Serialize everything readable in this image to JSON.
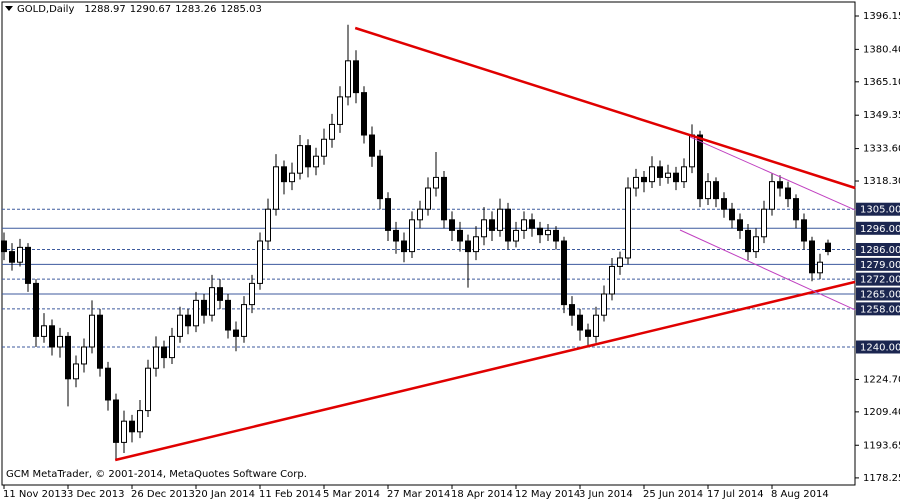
{
  "chart_data": {
    "type": "candlestick",
    "title": "GOLD,Daily",
    "footer": "GCM MetaTrader, © 2001-2014, MetaQuotes Software Corp.",
    "bull_color": "#ffffff",
    "bear_color": "#000000",
    "outline_color": "#000000",
    "categories": [
      "11 Nov 2013",
      null,
      null,
      null,
      null,
      null,
      null,
      null,
      "3 Dec 2013",
      null,
      null,
      null,
      null,
      null,
      null,
      null,
      "26 Dec 2013",
      null,
      null,
      null,
      null,
      null,
      null,
      null,
      "20 Jan 2014",
      null,
      null,
      null,
      null,
      null,
      null,
      null,
      "11 Feb 2014",
      null,
      null,
      null,
      null,
      null,
      null,
      null,
      "5 Mar 2014",
      null,
      null,
      null,
      null,
      null,
      null,
      null,
      "27 Mar 2014",
      null,
      null,
      null,
      null,
      null,
      null,
      null,
      "18 Apr 2014",
      null,
      null,
      null,
      null,
      null,
      null,
      null,
      "12 May 2014",
      null,
      null,
      null,
      null,
      null,
      null,
      null,
      "3 Jun 2014",
      null,
      null,
      null,
      null,
      null,
      null,
      null,
      "25 Jun 2014",
      null,
      null,
      null,
      null,
      null,
      null,
      null,
      "17 Jul 2014",
      null,
      null,
      null,
      null,
      null,
      null,
      null,
      "8 Aug 2014",
      null,
      null,
      null,
      null,
      null,
      null,
      null
    ],
    "candles": [
      [
        1290,
        1294,
        1281,
        1285
      ],
      [
        1285,
        1289,
        1276,
        1280
      ],
      [
        1280,
        1291,
        1278,
        1287
      ],
      [
        1287,
        1289,
        1266,
        1270
      ],
      [
        1270,
        1272,
        1240,
        1245
      ],
      [
        1245,
        1256,
        1242,
        1250
      ],
      [
        1250,
        1253,
        1236,
        1240
      ],
      [
        1240,
        1249,
        1235,
        1245
      ],
      [
        1245,
        1247,
        1212,
        1225
      ],
      [
        1225,
        1236,
        1221,
        1232
      ],
      [
        1232,
        1244,
        1228,
        1240
      ],
      [
        1240,
        1262,
        1237,
        1255
      ],
      [
        1255,
        1258,
        1226,
        1230
      ],
      [
        1230,
        1233,
        1210,
        1215
      ],
      [
        1215,
        1218,
        1187,
        1195
      ],
      [
        1195,
        1210,
        1190,
        1205
      ],
      [
        1205,
        1208,
        1195,
        1200
      ],
      [
        1200,
        1215,
        1197,
        1210
      ],
      [
        1210,
        1234,
        1207,
        1230
      ],
      [
        1230,
        1245,
        1226,
        1240
      ],
      [
        1240,
        1243,
        1230,
        1235
      ],
      [
        1235,
        1249,
        1232,
        1245
      ],
      [
        1245,
        1259,
        1242,
        1255
      ],
      [
        1255,
        1258,
        1246,
        1250
      ],
      [
        1250,
        1266,
        1247,
        1262
      ],
      [
        1262,
        1265,
        1251,
        1255
      ],
      [
        1255,
        1274,
        1252,
        1268
      ],
      [
        1268,
        1272,
        1258,
        1262
      ],
      [
        1262,
        1265,
        1244,
        1248
      ],
      [
        1248,
        1252,
        1238,
        1245
      ],
      [
        1245,
        1264,
        1242,
        1260
      ],
      [
        1260,
        1274,
        1256,
        1270
      ],
      [
        1270,
        1294,
        1267,
        1290
      ],
      [
        1290,
        1310,
        1286,
        1305
      ],
      [
        1305,
        1331,
        1302,
        1325
      ],
      [
        1325,
        1328,
        1312,
        1318
      ],
      [
        1318,
        1327,
        1314,
        1322
      ],
      [
        1322,
        1340,
        1319,
        1335
      ],
      [
        1335,
        1338,
        1320,
        1325
      ],
      [
        1325,
        1334,
        1321,
        1330
      ],
      [
        1330,
        1343,
        1326,
        1338
      ],
      [
        1338,
        1350,
        1334,
        1345
      ],
      [
        1345,
        1363,
        1341,
        1358
      ],
      [
        1358,
        1392,
        1354,
        1375
      ],
      [
        1375,
        1380,
        1355,
        1360
      ],
      [
        1360,
        1363,
        1336,
        1340
      ],
      [
        1340,
        1344,
        1325,
        1330
      ],
      [
        1330,
        1333,
        1305,
        1310
      ],
      [
        1310,
        1313,
        1290,
        1295
      ],
      [
        1295,
        1299,
        1284,
        1290
      ],
      [
        1290,
        1294,
        1280,
        1285
      ],
      [
        1285,
        1304,
        1282,
        1300
      ],
      [
        1300,
        1309,
        1296,
        1305
      ],
      [
        1305,
        1320,
        1302,
        1315
      ],
      [
        1315,
        1332,
        1311,
        1320
      ],
      [
        1320,
        1323,
        1296,
        1300
      ],
      [
        1300,
        1304,
        1290,
        1295
      ],
      [
        1295,
        1299,
        1285,
        1290
      ],
      [
        1290,
        1293,
        1268,
        1285
      ],
      [
        1285,
        1297,
        1281,
        1292
      ],
      [
        1292,
        1306,
        1288,
        1300
      ],
      [
        1300,
        1304,
        1290,
        1295
      ],
      [
        1295,
        1310,
        1292,
        1305
      ],
      [
        1305,
        1308,
        1286,
        1290
      ],
      [
        1290,
        1299,
        1287,
        1295
      ],
      [
        1295,
        1304,
        1291,
        1300
      ],
      [
        1300,
        1303,
        1292,
        1296
      ],
      [
        1296,
        1299,
        1289,
        1293
      ],
      [
        1293,
        1298,
        1290,
        1295
      ],
      [
        1295,
        1297,
        1286,
        1290
      ],
      [
        1290,
        1292,
        1256,
        1260
      ],
      [
        1260,
        1264,
        1250,
        1255
      ],
      [
        1255,
        1258,
        1243,
        1248
      ],
      [
        1248,
        1251,
        1240,
        1245
      ],
      [
        1245,
        1259,
        1242,
        1255
      ],
      [
        1255,
        1269,
        1252,
        1265
      ],
      [
        1265,
        1282,
        1262,
        1278
      ],
      [
        1278,
        1285,
        1274,
        1282
      ],
      [
        1282,
        1320,
        1279,
        1315
      ],
      [
        1315,
        1324,
        1311,
        1320
      ],
      [
        1320,
        1323,
        1313,
        1318
      ],
      [
        1318,
        1330,
        1315,
        1325
      ],
      [
        1325,
        1328,
        1316,
        1320
      ],
      [
        1320,
        1326,
        1317,
        1322
      ],
      [
        1322,
        1325,
        1314,
        1318
      ],
      [
        1318,
        1329,
        1315,
        1325
      ],
      [
        1325,
        1345,
        1322,
        1340
      ],
      [
        1340,
        1342,
        1306,
        1310
      ],
      [
        1310,
        1322,
        1307,
        1318
      ],
      [
        1318,
        1320,
        1306,
        1310
      ],
      [
        1310,
        1313,
        1301,
        1305
      ],
      [
        1305,
        1308,
        1296,
        1300
      ],
      [
        1300,
        1303,
        1291,
        1295
      ],
      [
        1295,
        1298,
        1281,
        1285
      ],
      [
        1285,
        1296,
        1282,
        1292
      ],
      [
        1292,
        1309,
        1289,
        1305
      ],
      [
        1305,
        1322,
        1302,
        1318
      ],
      [
        1318,
        1321,
        1311,
        1315
      ],
      [
        1315,
        1318,
        1306,
        1310
      ],
      [
        1310,
        1312,
        1296,
        1300
      ],
      [
        1300,
        1303,
        1286,
        1290
      ],
      [
        1290,
        1292,
        1271,
        1275
      ],
      [
        1275,
        1284,
        1272,
        1280
      ],
      [
        1288.97,
        1290.67,
        1283.26,
        1285.03
      ]
    ],
    "ylim": [
      1174.9,
      1402.75
    ],
    "yticks": [
      {
        "value": 1396.15,
        "label": "1396.15"
      },
      {
        "value": 1380.4,
        "label": "1380.40"
      },
      {
        "value": 1365.1,
        "label": "1365.10"
      },
      {
        "value": 1349.35,
        "label": "1349.35"
      },
      {
        "value": 1333.6,
        "label": "1333.60"
      },
      {
        "value": 1318.3,
        "label": "1318.30"
      },
      {
        "value": 1224.7,
        "label": "1224.70"
      },
      {
        "value": 1209.4,
        "label": "1209.40"
      },
      {
        "value": 1193.65,
        "label": "1193.65"
      },
      {
        "value": 1178.25,
        "label": "1178.25"
      }
    ],
    "level_color": "#3d5a9e",
    "level_label_color": "#1b2650",
    "levels": [
      {
        "value": 1305,
        "label": "1305.00",
        "style": "dashed"
      },
      {
        "value": 1296,
        "label": "1296.00",
        "style": "solid"
      },
      {
        "value": 1286,
        "label": "1286.00",
        "style": "dashed"
      },
      {
        "value": 1279,
        "label": "1279.00",
        "style": "solid"
      },
      {
        "value": 1272,
        "label": "1272.00",
        "style": "dashed"
      },
      {
        "value": 1265,
        "label": "1265.00",
        "style": "solid"
      },
      {
        "value": 1258,
        "label": "1258.00",
        "style": "dashed"
      },
      {
        "value": 1240,
        "label": "1240.00",
        "style": "dashed"
      }
    ],
    "trendlines": [
      {
        "color": "#e00000",
        "width": 2.5,
        "x": [
          43.9,
          106.4
        ],
        "y": [
          1390.5,
          1315
        ]
      },
      {
        "color": "#e00000",
        "width": 2.5,
        "x": [
          13.9,
          106.4
        ],
        "y": [
          1186.7,
          1270.7
        ]
      },
      {
        "color": "#c040c0",
        "width": 1,
        "x": [
          85.75,
          106.4
        ],
        "y": [
          1339.1,
          1304.6
        ]
      },
      {
        "color": "#c040c0",
        "width": 1,
        "x": [
          84.5,
          106.4
        ],
        "y": [
          1295.2,
          1257.5
        ]
      }
    ]
  }
}
